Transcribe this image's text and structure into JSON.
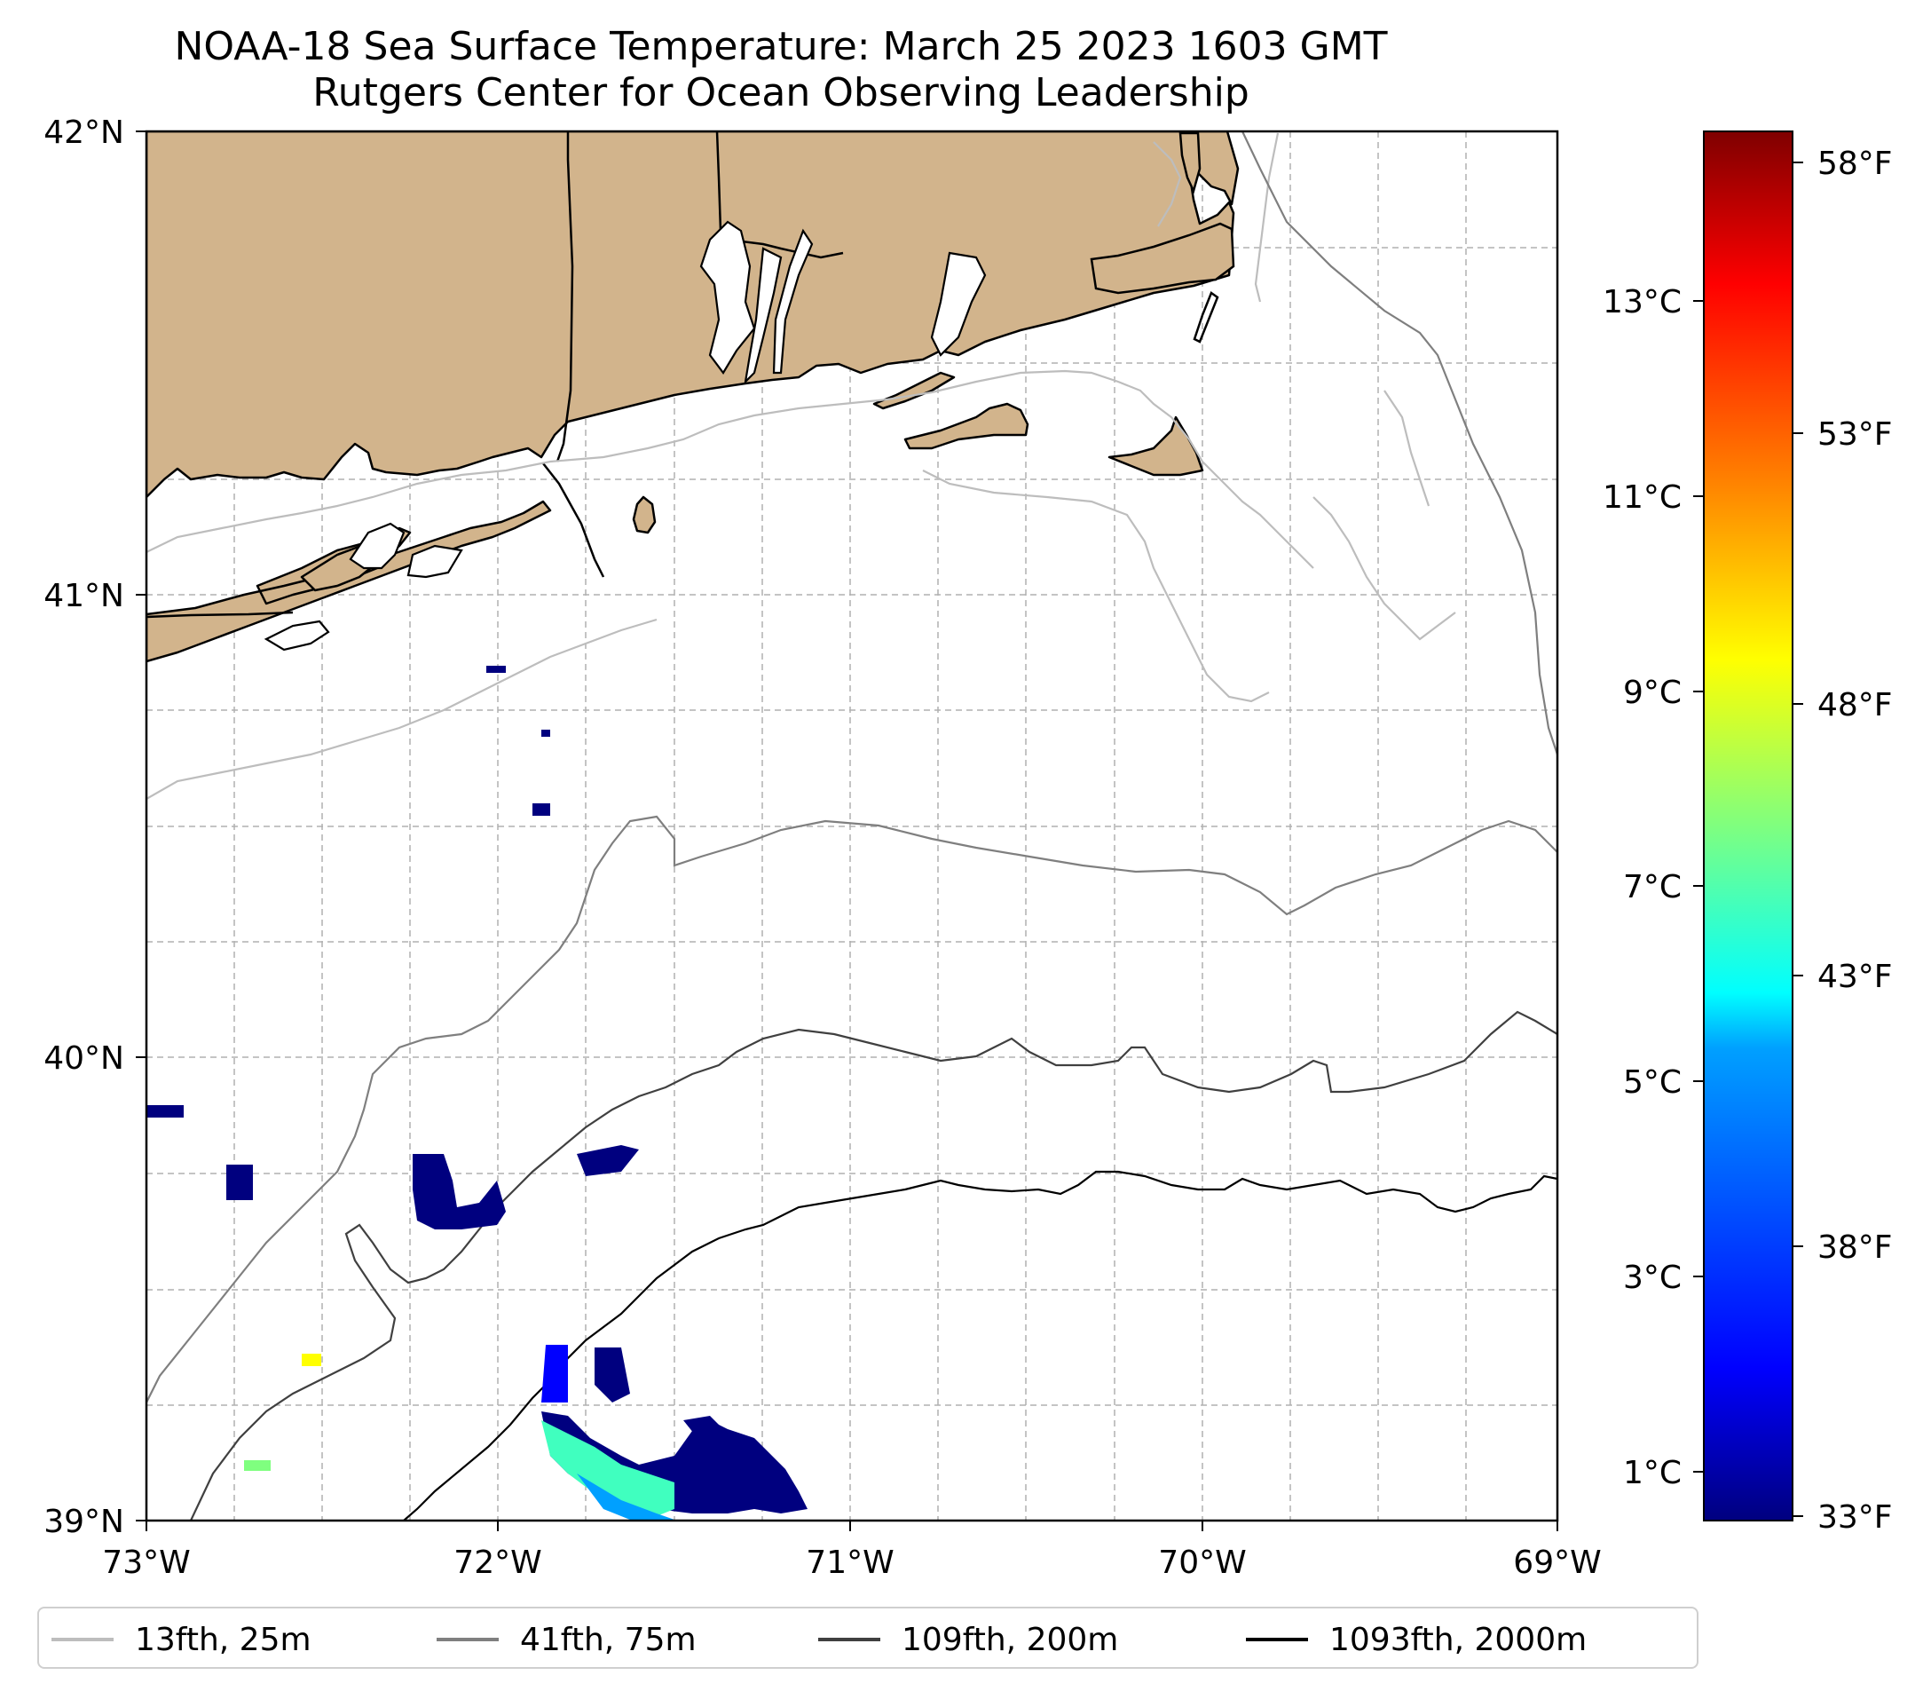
{
  "title": {
    "line1": "NOAA-18 Sea Surface Temperature: March 25 2023 1603 GMT",
    "line2": "Rutgers Center for Ocean Observing Leadership"
  },
  "map": {
    "extent": {
      "lon_min": -73,
      "lon_max": -69,
      "lat_min": 39,
      "lat_max": 42
    },
    "lon_ticks": [
      "73°W",
      "72°W",
      "71°W",
      "70°W",
      "69°W"
    ],
    "lat_ticks": [
      "42°N",
      "41°N",
      "40°N",
      "39°N"
    ],
    "land_color": "#d2b48c",
    "grid": true,
    "sst_patches_color_note": "jet colormap"
  },
  "colorbar": {
    "celsius_ticks": [
      "13°C",
      "11°C",
      "9°C",
      "7°C",
      "5°C",
      "3°C",
      "1°C"
    ],
    "fahrenheit_ticks": [
      "58°F",
      "53°F",
      "48°F",
      "43°F",
      "38°F",
      "33°F"
    ],
    "colormap": [
      "#00007f",
      "#0000ff",
      "#007fff",
      "#00ffff",
      "#7fff7f",
      "#ffff00",
      "#ff7f00",
      "#ff0000",
      "#7f0000"
    ]
  },
  "legend": {
    "items": [
      {
        "label": "13fth, 25m",
        "color": "#bdbdbd"
      },
      {
        "label": "41fth, 75m",
        "color": "#7f7f7f"
      },
      {
        "label": "109fth, 200m",
        "color": "#404040"
      },
      {
        "label": "1093fth, 2000m",
        "color": "#000000"
      }
    ]
  }
}
